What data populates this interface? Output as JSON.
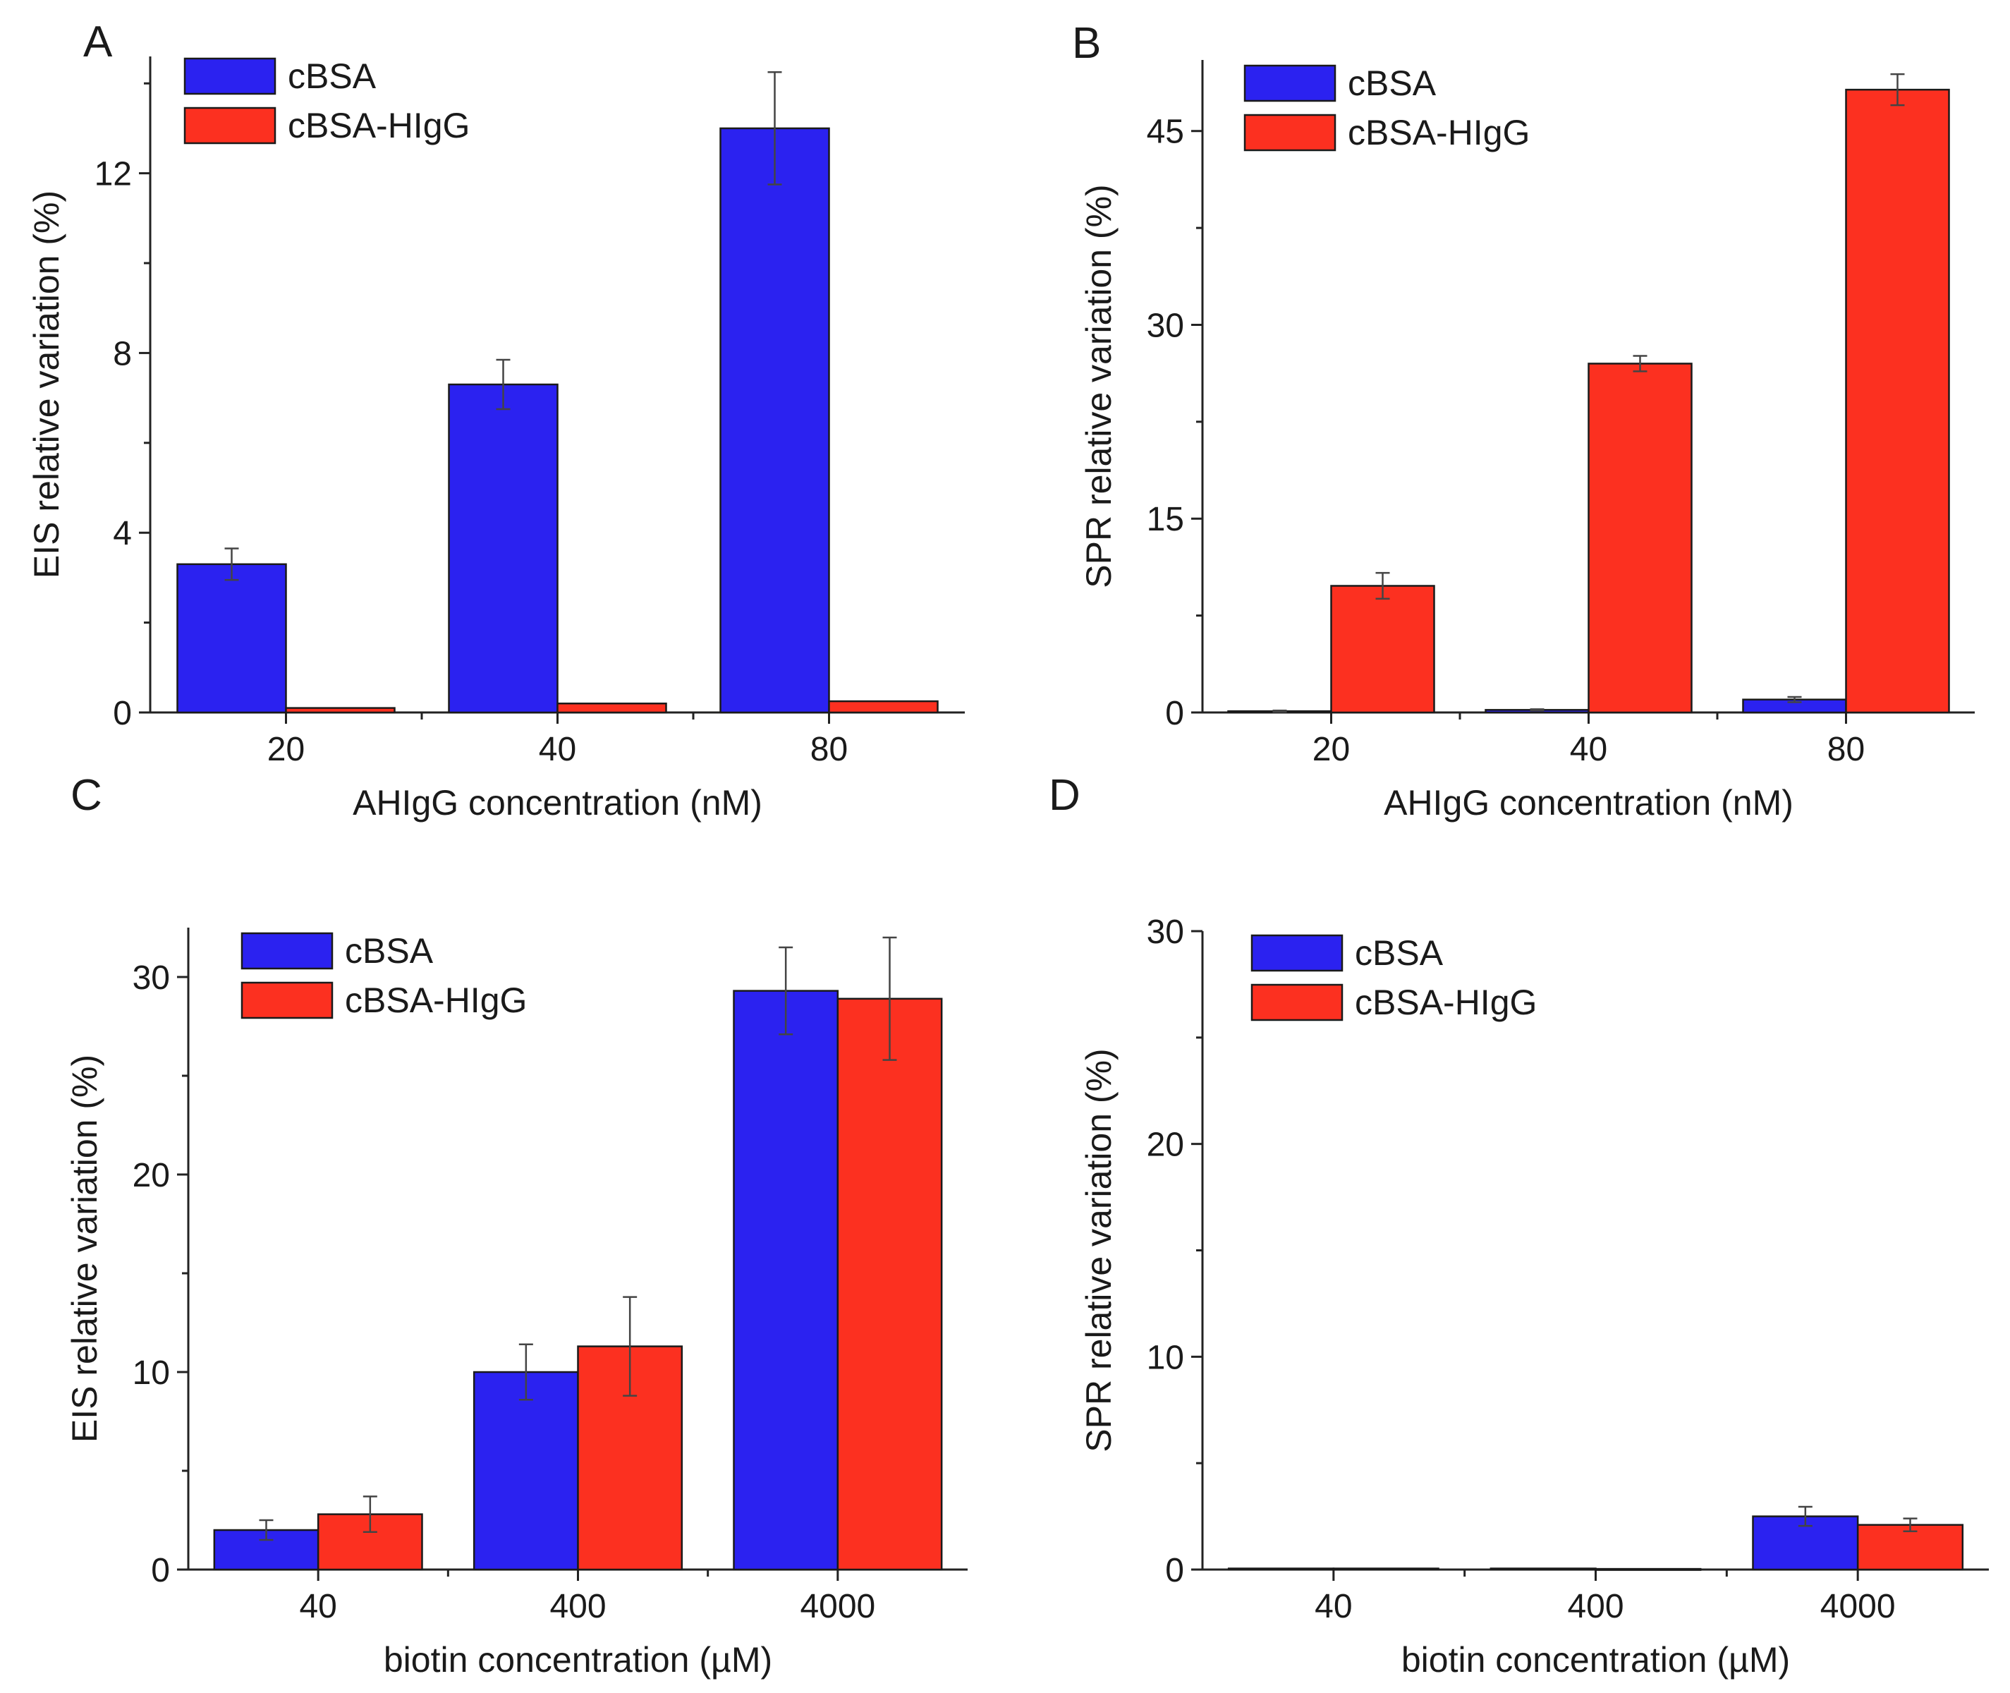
{
  "chart_data": [
    {
      "panel": "A",
      "type": "bar",
      "categories": [
        "20",
        "40",
        "80"
      ],
      "series": [
        {
          "name": "cBSA",
          "color": "#2b22f0",
          "values": [
            3.3,
            7.3,
            13.0
          ],
          "errors": [
            0.35,
            0.55,
            1.25
          ]
        },
        {
          "name": "cBSA-HIgG",
          "color": "#fc3020",
          "values": [
            0.1,
            0.2,
            0.25
          ],
          "errors": [
            0.02,
            0.02,
            0.02
          ]
        }
      ],
      "xlabel": "AHIgG concentration (nM)",
      "ylabel": "EIS relative variation (%)",
      "ylim": [
        0,
        14.6
      ],
      "yticks": [
        0,
        4,
        8,
        12
      ]
    },
    {
      "panel": "B",
      "type": "bar",
      "categories": [
        "20",
        "40",
        "80"
      ],
      "series": [
        {
          "name": "cBSA",
          "color": "#2b22f0",
          "values": [
            0.1,
            0.2,
            1.0
          ],
          "errors": [
            0.05,
            0.05,
            0.2
          ]
        },
        {
          "name": "cBSA-HIgG",
          "color": "#fc3020",
          "values": [
            9.8,
            27.0,
            48.2
          ],
          "errors": [
            1.0,
            0.6,
            1.2
          ]
        }
      ],
      "xlabel": "AHIgG concentration (nM)",
      "ylabel": "SPR relative variation (%)",
      "ylim": [
        0,
        50.5
      ],
      "yticks": [
        0,
        15,
        30,
        45
      ]
    },
    {
      "panel": "C",
      "type": "bar",
      "categories": [
        "40",
        "400",
        "4000"
      ],
      "series": [
        {
          "name": "cBSA",
          "color": "#2b22f0",
          "values": [
            2.0,
            10.0,
            29.3
          ],
          "errors": [
            0.5,
            1.4,
            2.2
          ]
        },
        {
          "name": "cBSA-HIgG",
          "color": "#fc3020",
          "values": [
            2.8,
            11.3,
            28.9
          ],
          "errors": [
            0.9,
            2.5,
            3.1
          ]
        }
      ],
      "xlabel": "biotin concentration (µM)",
      "ylabel": "EIS relative variation (%)",
      "ylim": [
        0,
        32.5
      ],
      "yticks": [
        0,
        10,
        20,
        30
      ]
    },
    {
      "panel": "D",
      "type": "bar",
      "categories": [
        "40",
        "400",
        "4000"
      ],
      "series": [
        {
          "name": "cBSA",
          "color": "#2b22f0",
          "values": [
            0.05,
            0.05,
            2.5
          ],
          "errors": [
            0.02,
            0.02,
            0.45
          ]
        },
        {
          "name": "cBSA-HIgG",
          "color": "#fc3020",
          "values": [
            0.05,
            0.03,
            2.1
          ],
          "errors": [
            0.02,
            0.02,
            0.3
          ]
        }
      ],
      "xlabel": "biotin concentration (µM)",
      "ylabel": "SPR relative variation (%)",
      "ylim": [
        0,
        30
      ],
      "yticks": [
        0,
        10,
        20,
        30
      ]
    }
  ]
}
